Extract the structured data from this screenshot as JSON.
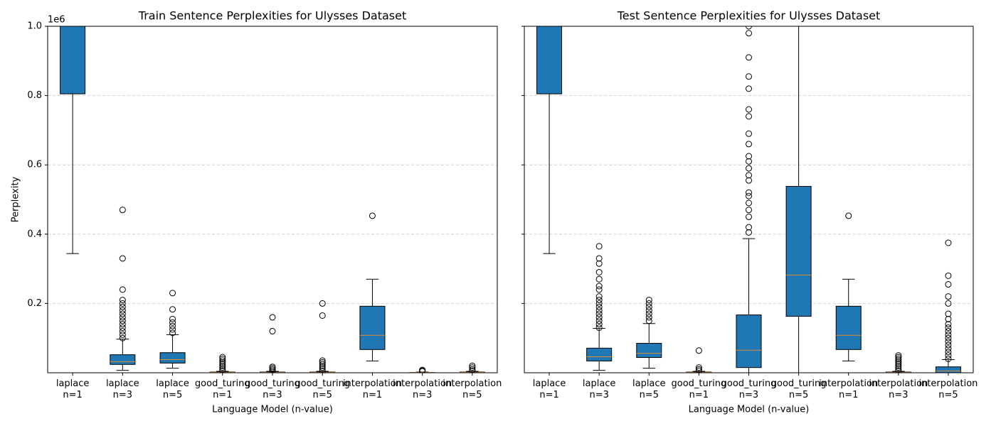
{
  "chart_data": [
    {
      "type": "box",
      "title": "Train Sentence Perplexities for Ulysses Dataset",
      "xlabel": "Language Model (n-value)",
      "ylabel": "Perplexity",
      "offset_text": "1e6",
      "categories": [
        "laplace\nn=1",
        "laplace\nn=3",
        "laplace\nn=5",
        "good_turing\nn=1",
        "good_turing\nn=3",
        "good_turing\nn=5",
        "interpolation\nn=1",
        "interpolation\nn=3",
        "interpolation\nn=5"
      ],
      "color": "#1f77b4",
      "median_color": "#e08a2c",
      "ylim": [
        0,
        1
      ],
      "yticks": [
        0.2,
        0.4,
        0.6,
        0.8,
        {
          "value": 1,
          "label": "1.0"
        }
      ],
      "grid": true,
      "boxes": [
        {
          "whislo": 0.344,
          "q1": 0.805,
          "median": null,
          "q3": null,
          "whishi": null,
          "fliers": []
        },
        {
          "whislo": 0.007,
          "q1": 0.024,
          "median": 0.032,
          "q3": 0.052,
          "whishi": 0.097,
          "fliers": [
            0.1,
            0.11,
            0.12,
            0.13,
            0.14,
            0.15,
            0.16,
            0.17,
            0.18,
            0.19,
            0.2,
            0.21,
            0.24,
            0.33,
            0.47
          ]
        },
        {
          "whislo": 0.013,
          "q1": 0.028,
          "median": 0.038,
          "q3": 0.058,
          "whishi": 0.11,
          "fliers": [
            0.115,
            0.125,
            0.135,
            0.145,
            0.155,
            0.183,
            0.23
          ]
        },
        {
          "whislo": 0,
          "q1": 0,
          "median": 0.001,
          "q3": 0.002,
          "whishi": 0.004,
          "fliers": [
            0.006,
            0.01,
            0.015,
            0.02,
            0.025,
            0.03,
            0.035,
            0.04,
            0.045
          ]
        },
        {
          "whislo": 0,
          "q1": 0,
          "median": 0.001,
          "q3": 0.002,
          "whishi": 0.004,
          "fliers": [
            0.005,
            0.009,
            0.013,
            0.017,
            0.12,
            0.16
          ]
        },
        {
          "whislo": 0,
          "q1": 0,
          "median": 0.001,
          "q3": 0.002,
          "whishi": 0.004,
          "fliers": [
            0.005,
            0.01,
            0.015,
            0.02,
            0.025,
            0.03,
            0.035,
            0.165,
            0.2
          ]
        },
        {
          "whislo": 0.034,
          "q1": 0.067,
          "median": 0.108,
          "q3": 0.192,
          "whishi": 0.27,
          "fliers": [
            0.453
          ]
        },
        {
          "whislo": 0,
          "q1": 0,
          "median": 0.001,
          "q3": 0.001,
          "whishi": 0.002,
          "fliers": [
            0.004,
            0.006,
            0.008
          ]
        },
        {
          "whislo": 0,
          "q1": 0,
          "median": 0.001,
          "q3": 0.002,
          "whishi": 0.004,
          "fliers": [
            0.006,
            0.01,
            0.015,
            0.02
          ]
        }
      ]
    },
    {
      "type": "box",
      "title": "Test Sentence Perplexities for Ulysses Dataset",
      "xlabel": "Language Model (n-value)",
      "sharey": true,
      "categories": [
        "laplace\nn=1",
        "laplace\nn=3",
        "laplace\nn=5",
        "good_turing\nn=1",
        "good_turing\nn=3",
        "good_turing\nn=5",
        "interpolation\nn=1",
        "interpolation\nn=3",
        "interpolation\nn=5"
      ],
      "color": "#1f77b4",
      "median_color": "#e08a2c",
      "ylim": [
        0,
        1
      ],
      "grid": true,
      "boxes": [
        {
          "whislo": 0.344,
          "q1": 0.805,
          "median": null,
          "q3": null,
          "whishi": null,
          "fliers": []
        },
        {
          "whislo": 0.007,
          "q1": 0.034,
          "median": 0.046,
          "q3": 0.071,
          "whishi": 0.128,
          "fliers": [
            0.13,
            0.14,
            0.15,
            0.16,
            0.17,
            0.18,
            0.19,
            0.2,
            0.21,
            0.22,
            0.24,
            0.25,
            0.27,
            0.29,
            0.315,
            0.33,
            0.365
          ]
        },
        {
          "whislo": 0.013,
          "q1": 0.044,
          "median": 0.056,
          "q3": 0.085,
          "whishi": 0.142,
          "fliers": [
            0.15,
            0.16,
            0.17,
            0.18,
            0.19,
            0.2,
            0.21
          ]
        },
        {
          "whislo": 0,
          "q1": 0,
          "median": 0.001,
          "q3": 0.002,
          "whishi": 0.004,
          "fliers": [
            0.006,
            0.01,
            0.015,
            0.064
          ]
        },
        {
          "whislo": 0,
          "q1": 0.015,
          "median": 0.065,
          "q3": 0.167,
          "whishi": 0.387,
          "fliers": [
            0.405,
            0.42,
            0.45,
            0.47,
            0.49,
            0.51,
            0.52,
            0.555,
            0.57,
            0.59,
            0.61,
            0.625,
            0.66,
            0.69,
            0.74,
            0.76,
            0.82,
            0.855,
            0.91,
            0.98,
            1.0
          ]
        },
        {
          "whislo": 0,
          "q1": 0.163,
          "median": 0.282,
          "q3": 0.538,
          "whishi": null,
          "fliers": []
        },
        {
          "whislo": 0.034,
          "q1": 0.067,
          "median": 0.108,
          "q3": 0.192,
          "whishi": 0.27,
          "fliers": [
            0.453
          ]
        },
        {
          "whislo": 0,
          "q1": 0,
          "median": 0.001,
          "q3": 0.002,
          "whishi": 0.004,
          "fliers": [
            0.006,
            0.01,
            0.015,
            0.02,
            0.025,
            0.03,
            0.035,
            0.04,
            0.045,
            0.05
          ]
        },
        {
          "whislo": 0,
          "q1": 0,
          "median": 0.005,
          "q3": 0.017,
          "whishi": 0.038,
          "fliers": [
            0.04,
            0.05,
            0.06,
            0.07,
            0.08,
            0.09,
            0.1,
            0.11,
            0.12,
            0.13,
            0.14,
            0.155,
            0.17,
            0.2,
            0.22,
            0.255,
            0.28,
            0.375
          ]
        }
      ]
    }
  ]
}
